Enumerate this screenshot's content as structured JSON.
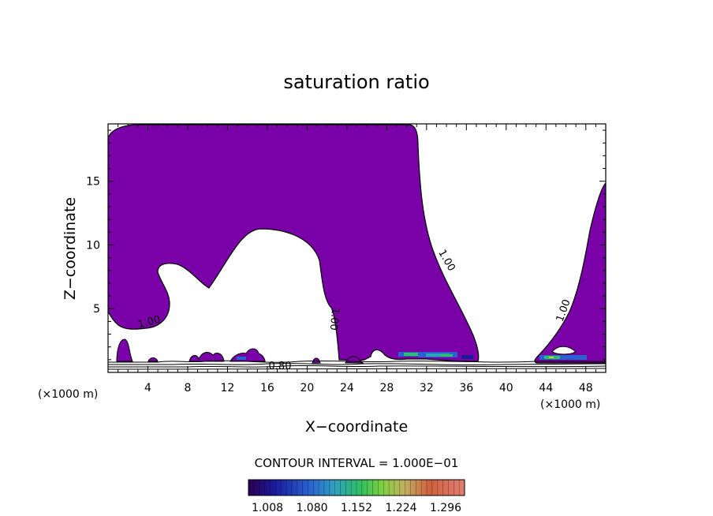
{
  "chart_data": {
    "type": "contour",
    "title": "saturation ratio",
    "xlabel": "X−coordinate",
    "ylabel": "Z−coordinate",
    "x_unit_left": "(×1000 m)",
    "x_unit_right": "(×1000 m)",
    "xlim": [
      0,
      50
    ],
    "ylim": [
      0,
      19.5
    ],
    "x_ticks": [
      4,
      8,
      12,
      16,
      20,
      24,
      28,
      32,
      36,
      40,
      44,
      48
    ],
    "y_ticks": [
      5,
      10,
      15
    ],
    "fill_color": "#7a00a8",
    "contour_labels": [
      {
        "text": "1.00",
        "x": 4.0,
        "y": 4.0
      },
      {
        "text": "1.00",
        "x": 22.5,
        "y": 4.2
      },
      {
        "text": "1.00",
        "x": 33.5,
        "y": 8.5
      },
      {
        "text": "1.00",
        "x": 45.0,
        "y": 4.5
      },
      {
        "text": "0.80",
        "x": 17.5,
        "y": 0.5
      }
    ],
    "contour_interval_label": "CONTOUR INTERVAL = 1.000E−01",
    "colorbar": {
      "ticks": [
        "1.008",
        "1.080",
        "1.152",
        "1.224",
        "1.296"
      ],
      "range": [
        1.008,
        1.296
      ]
    },
    "grid": false
  }
}
